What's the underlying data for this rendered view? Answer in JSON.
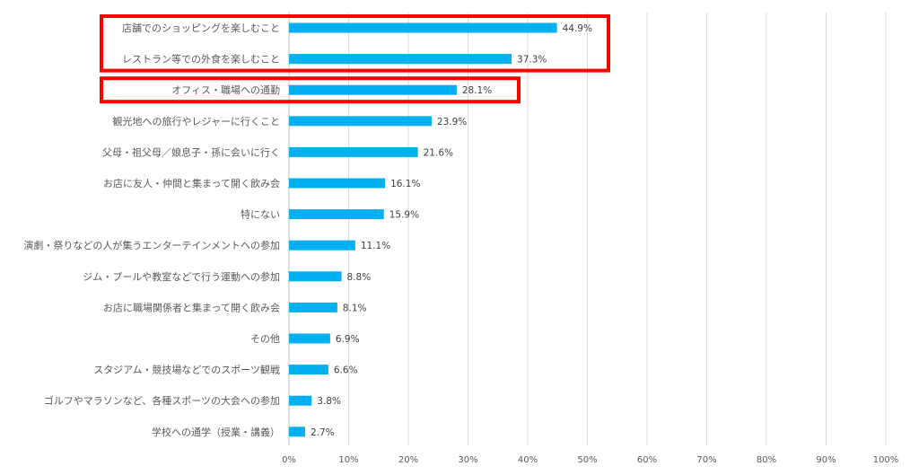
{
  "chart_data": {
    "type": "bar",
    "orientation": "horizontal",
    "categories": [
      "店舗でのショッピングを楽しむこと",
      "レストラン等での外食を楽しむこと",
      "オフィス・職場への通勤",
      "観光地への旅行やレジャーに行くこと",
      "父母・祖父母／娘息子・孫に会いに行く",
      "お店に友人・仲間と集まって開く飲み会",
      "特にない",
      "演劇・祭りなどの人が集うエンターテインメントへの参加",
      "ジム・プールや教室などで行う運動への参加",
      "お店に職場関係者と集まって開く飲み会",
      "その他",
      "スタジアム・競技場などでのスポーツ観戦",
      "ゴルフやマラソンなど、各種スポーツの大会への参加",
      "学校への通学（授業・講義）"
    ],
    "values": [
      44.9,
      37.3,
      28.1,
      23.9,
      21.6,
      16.1,
      15.9,
      11.1,
      8.8,
      8.1,
      6.9,
      6.6,
      3.8,
      2.7
    ],
    "value_labels": [
      "44.9%",
      "37.3%",
      "28.1%",
      "23.9%",
      "21.6%",
      "16.1%",
      "15.9%",
      "11.1%",
      "8.8%",
      "8.1%",
      "6.9%",
      "6.6%",
      "3.8%",
      "2.7%"
    ],
    "x_ticks": [
      0,
      10,
      20,
      30,
      40,
      50,
      60,
      70,
      80,
      90,
      100
    ],
    "x_tick_labels": [
      "0%",
      "10%",
      "20%",
      "30%",
      "40%",
      "50%",
      "60%",
      "70%",
      "80%",
      "90%",
      "100%"
    ],
    "xlim": [
      0,
      100
    ],
    "grid": "vertical",
    "bar_color": "#00b0f0",
    "highlight_color": "#ff0000",
    "highlight_groups": [
      [
        0,
        1
      ],
      [
        2
      ]
    ],
    "title": "",
    "xlabel": "",
    "ylabel": ""
  }
}
